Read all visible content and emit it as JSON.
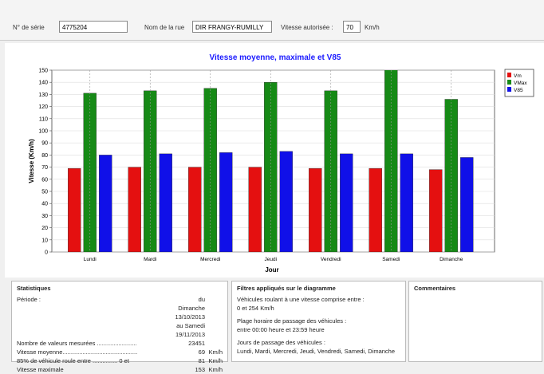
{
  "header": {
    "serial_label": "N° de série",
    "serial": "4775204",
    "street_label": "Nom de la rue",
    "street": "DIR FRANGY-RUMILLY",
    "speed_label": "Vitesse autorisée :",
    "speed": "70",
    "speed_unit": "Km/h"
  },
  "chart_data": {
    "type": "bar",
    "title": "Vitesse moyenne, maximale et V85",
    "x_label": "Jour",
    "y_label": "Vitesse (Km/h)",
    "categories": [
      "Lundi",
      "Mardi",
      "Mercredi",
      "Jeudi",
      "Vendredi",
      "Samedi",
      "Dimanche"
    ],
    "series": [
      {
        "name": "Vm",
        "color": "#e41010",
        "values": [
          69,
          70,
          70,
          70,
          69,
          69,
          68
        ]
      },
      {
        "name": "VMax",
        "color": "#168a16",
        "values": [
          131,
          133,
          135,
          140,
          133,
          153,
          126
        ]
      },
      {
        "name": "V85",
        "color": "#1010e8",
        "values": [
          80,
          81,
          82,
          83,
          81,
          81,
          78
        ]
      }
    ],
    "ylim": [
      0,
      150
    ],
    "yticks": [
      0,
      10,
      20,
      30,
      40,
      50,
      60,
      70,
      80,
      90,
      100,
      110,
      120,
      130,
      140,
      150
    ],
    "grid": true,
    "legend": "right"
  },
  "statistics": {
    "title": "Statistiques",
    "rows": [
      [
        "Période :",
        "du Dimanche 13/10/2013 au Samedi 19/11/2013",
        ""
      ],
      [
        "Nombre de valeurs mesurées ........................",
        "23451",
        ""
      ],
      [
        "Vitesse moyenne.............................................",
        "69",
        "Km/h"
      ],
      [
        "85% de véhicule roule entre ............... 0 et",
        "81",
        "Km/h"
      ],
      [
        "Vitesse maximale",
        "153",
        "Km/h"
      ]
    ]
  },
  "filters": {
    "title": "Filtres appliqués sur le diagramme",
    "lines": [
      "Véhicules roulant à une vitesse comprise entre :",
      "0   et   254 Km/h",
      "Plage horaire de passage des véhicules :",
      "entre   00:00  heure et   23:59  heure",
      "Jours de passage des véhicules :",
      "Lundi, Mardi, Mercredi, Jeudi, Vendredi, Samedi, Dimanche"
    ]
  },
  "comments": {
    "title": "Commentaires"
  }
}
